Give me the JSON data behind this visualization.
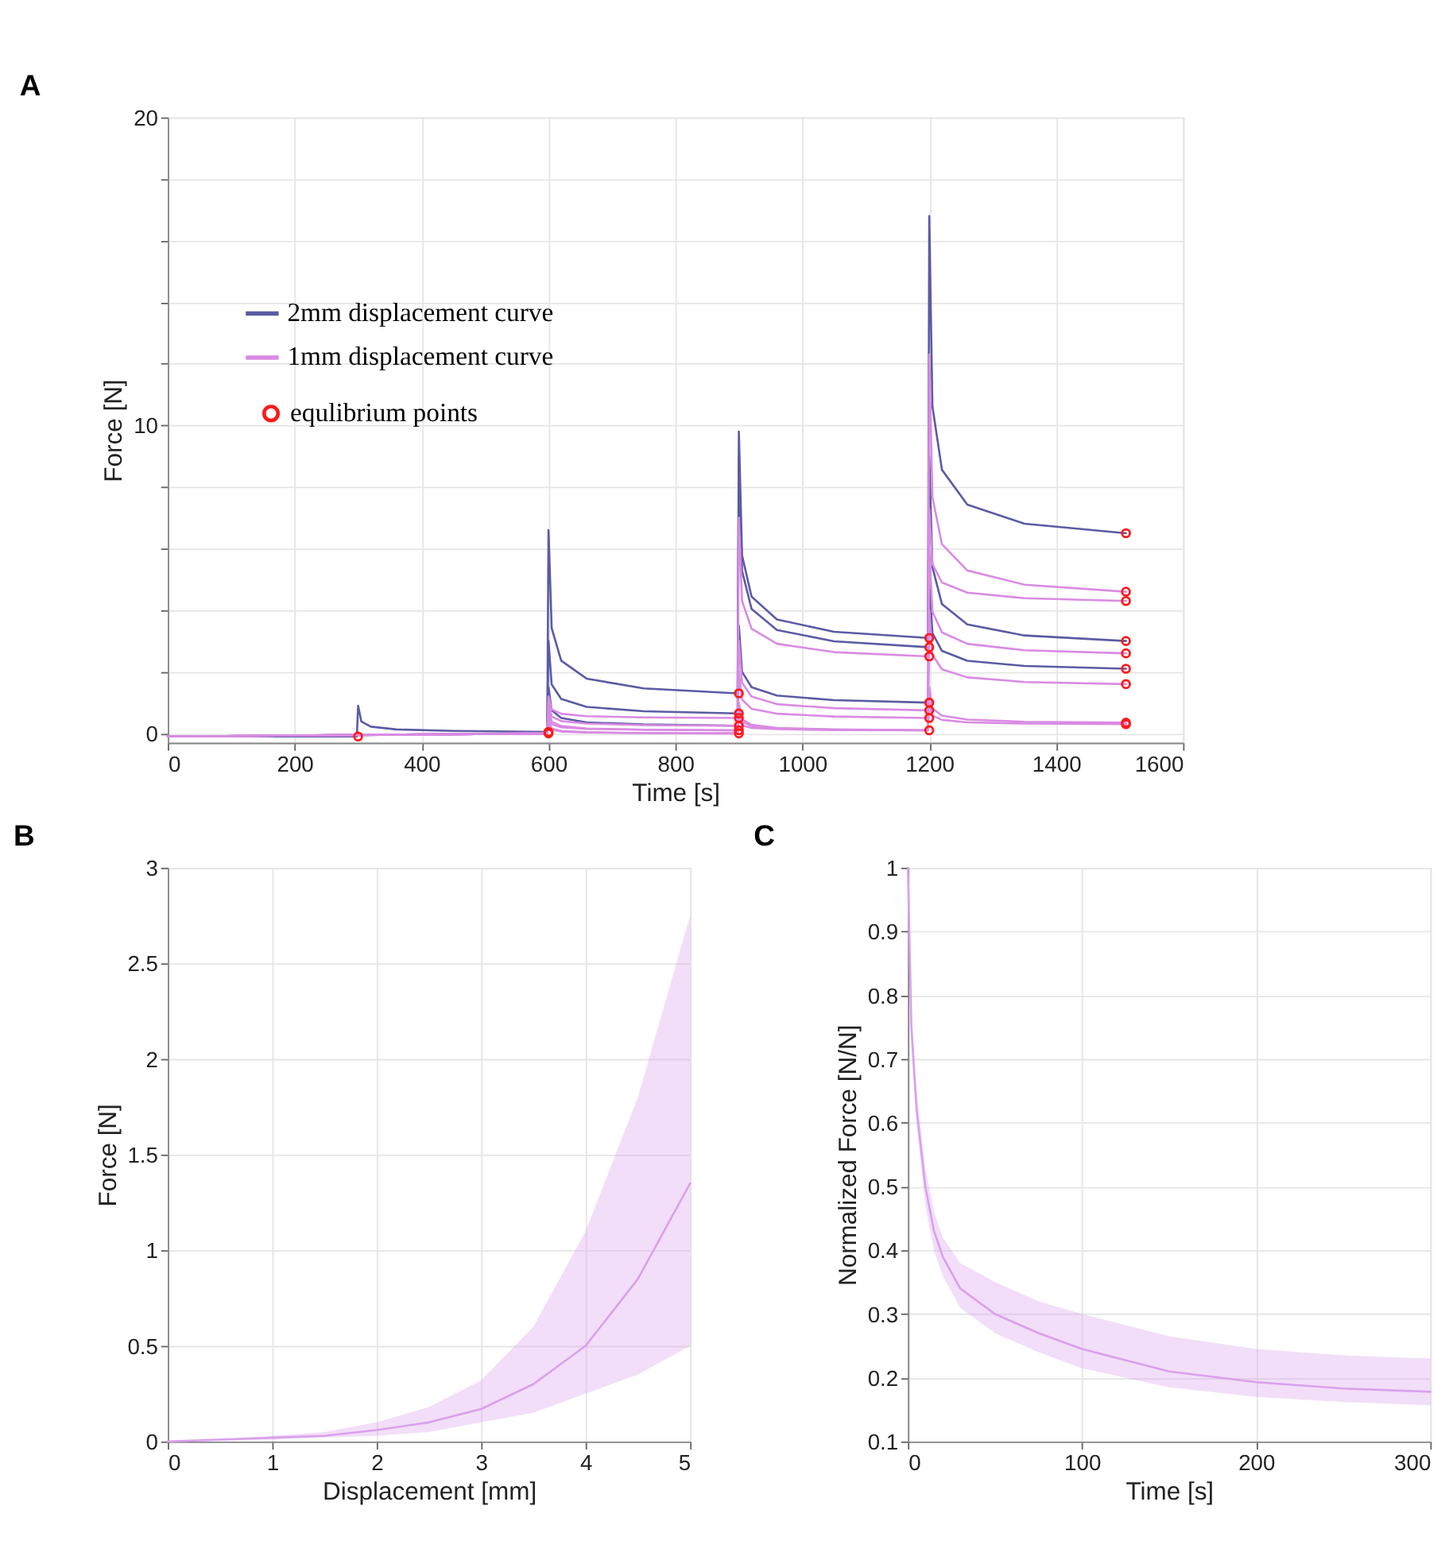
{
  "chart_data": [
    {
      "type": "line",
      "title": "A",
      "xlabel": "Time [s]",
      "ylabel": "Force [N]",
      "xlim": [
        0,
        1600
      ],
      "ylim": [
        -0.3,
        20
      ],
      "xticks": [
        0,
        200,
        400,
        600,
        800,
        1000,
        1200,
        1400,
        1600
      ],
      "yticks": [
        0,
        {
          "value": 2,
          "label": null
        },
        {
          "value": 4,
          "label": null
        },
        {
          "value": 6,
          "label": null
        },
        {
          "value": 8,
          "label": null
        },
        10,
        {
          "value": 12,
          "label": null
        },
        {
          "value": 14,
          "label": null
        },
        {
          "value": 16,
          "label": null
        },
        {
          "value": 18,
          "label": null
        },
        20
      ],
      "grid": true,
      "legend": "top left",
      "series": [
        {
          "name": "2mm displacement curve",
          "color": "#5b5ba3",
          "x": [
            0,
            298,
            300,
            305,
            320,
            360,
            450,
            598,
            600,
            605,
            620,
            660,
            750,
            898,
            900,
            905,
            920,
            960,
            1050,
            1198,
            1200,
            1205,
            1220,
            1260,
            1350,
            1510
          ],
          "values": [
            -0.1,
            -0.1,
            0.9,
            0.39,
            0.22,
            0.13,
            0.08,
            0.05,
            6.6,
            3.42,
            2.36,
            1.78,
            1.46,
            1.3,
            9.8,
            5.78,
            4.44,
            3.7,
            3.3,
            3.1,
            16.8,
            10.62,
            8.56,
            7.43,
            6.81,
            6.5
          ]
        },
        {
          "color": "#5b5ba3",
          "x": [
            0,
            598,
            600,
            605,
            620,
            660,
            750,
            898,
            900,
            905,
            920,
            960,
            1050,
            1198,
            1200,
            1205,
            1220,
            1260,
            1350,
            1510
          ],
          "values": [
            -0.1,
            0.0,
            3.0,
            1.59,
            1.12,
            0.86,
            0.72,
            0.65,
            9.0,
            5.28,
            4.04,
            3.36,
            2.99,
            2.8,
            9.0,
            5.4,
            4.2,
            3.54,
            3.18,
            3.0
          ]
        },
        {
          "color": "#5b5ba3",
          "x": [
            0,
            598,
            600,
            605,
            620,
            660,
            750,
            898,
            900,
            905,
            920,
            960,
            1050,
            1198,
            1200,
            1205,
            1220,
            1260,
            1350,
            1510
          ],
          "values": [
            -0.1,
            0.0,
            1.5,
            0.75,
            0.5,
            0.36,
            0.29,
            0.25,
            3.5,
            2.0,
            1.5,
            1.23,
            1.08,
            1.0,
            5.0,
            3.26,
            2.68,
            2.36,
            2.19,
            2.1
          ]
        },
        {
          "name": "1mm displacement curve",
          "color": "#d98be3",
          "x": [
            0,
            598,
            600,
            605,
            620,
            660,
            750,
            898,
            900,
            905,
            920,
            960,
            1050,
            1198,
            1200,
            1205,
            1220,
            1260,
            1350,
            1510
          ],
          "values": [
            -0.1,
            0.0,
            1.2,
            0.78,
            0.64,
            0.56,
            0.52,
            0.5,
            7.0,
            4.3,
            3.4,
            2.91,
            2.64,
            2.5,
            12.3,
            7.68,
            6.14,
            5.29,
            4.83,
            4.6
          ]
        },
        {
          "color": "#d98be3",
          "x": [
            0,
            598,
            600,
            605,
            620,
            660,
            750,
            898,
            900,
            905,
            920,
            960,
            1050,
            1198,
            1200,
            1205,
            1220,
            1260,
            1350,
            1510
          ],
          "values": [
            -0.1,
            0.0,
            1.0,
            0.55,
            0.4,
            0.32,
            0.27,
            0.25,
            3.0,
            1.65,
            1.2,
            0.95,
            0.82,
            0.75,
            7.3,
            5.5,
            4.9,
            4.57,
            4.39,
            4.3
          ]
        },
        {
          "color": "#d98be3",
          "x": [
            0,
            598,
            600,
            605,
            620,
            660,
            750,
            898,
            900,
            905,
            920,
            960,
            1050,
            1198,
            1200,
            1205,
            1220,
            1260,
            1350,
            1510
          ],
          "values": [
            -0.1,
            0.0,
            0.8,
            0.38,
            0.24,
            0.16,
            0.12,
            0.1,
            2.0,
            1.1,
            0.8,
            0.64,
            0.55,
            0.5,
            6.0,
            3.96,
            3.28,
            2.91,
            2.7,
            2.6
          ]
        },
        {
          "color": "#d98be3",
          "x": [
            0,
            598,
            600,
            605,
            620,
            660,
            750,
            898,
            900,
            905,
            920,
            960,
            1050,
            1198,
            1200,
            1205,
            1220,
            1260,
            1350,
            1510
          ],
          "values": [
            -0.1,
            0.0,
            0.6,
            0.3,
            0.2,
            0.15,
            0.12,
            0.1,
            1.0,
            0.46,
            0.28,
            0.18,
            0.13,
            0.1,
            4.0,
            2.56,
            2.08,
            1.82,
            1.67,
            1.6
          ]
        },
        {
          "color": "#d98be3",
          "x": [
            0,
            598,
            600,
            605,
            620,
            660,
            750,
            898,
            900,
            905,
            920,
            960,
            1050,
            1198,
            1200,
            1205,
            1220,
            1260,
            1350,
            1510
          ],
          "values": [
            -0.1,
            0.0,
            0.4,
            0.16,
            0.08,
            0.04,
            0.01,
            0.0,
            0.8,
            0.38,
            0.24,
            0.16,
            0.12,
            0.1,
            1.5,
            0.81,
            0.58,
            0.45,
            0.38,
            0.35
          ]
        },
        {
          "color": "#d98be3",
          "x": [
            0,
            598,
            600,
            605,
            620,
            660,
            750,
            898,
            900,
            905,
            920,
            960,
            1050,
            1198,
            1200,
            1205,
            1220,
            1260,
            1350,
            1510
          ],
          "values": [
            -0.1,
            0.0,
            0.3,
            0.12,
            0.06,
            0.03,
            0.01,
            0.0,
            0.5,
            0.26,
            0.18,
            0.14,
            0.11,
            0.1,
            1.0,
            0.58,
            0.44,
            0.36,
            0.32,
            0.3
          ]
        },
        {
          "name": "equlibrium points",
          "type": "scatter",
          "marker": "circle",
          "color": "#ff1a1a",
          "x": [
            300,
            600,
            600,
            900,
            900,
            900,
            900,
            900,
            900,
            1200,
            1200,
            1200,
            1200,
            1200,
            1200,
            1200,
            1510,
            1510,
            1510,
            1510,
            1510,
            1510,
            1510,
            1510,
            1510
          ],
          "values": [
            -0.1,
            0.0,
            0.05,
            1.3,
            0.65,
            0.5,
            0.25,
            0.1,
            0.0,
            3.1,
            2.8,
            2.5,
            1.0,
            0.75,
            0.5,
            0.1,
            6.5,
            4.6,
            4.3,
            3.0,
            2.6,
            2.1,
            1.6,
            0.35,
            0.3
          ]
        }
      ]
    },
    {
      "type": "line",
      "title": "B",
      "xlabel": "Displacement [mm]",
      "ylabel": "Force [N]",
      "xlim": [
        0,
        5
      ],
      "ylim": [
        0,
        3
      ],
      "xticks": [
        0,
        1,
        2,
        3,
        4,
        5
      ],
      "yticks": [
        0,
        0.5,
        1,
        1.5,
        2,
        2.5,
        3
      ],
      "grid": true,
      "series": [
        {
          "color": "#d9a0ec",
          "x": [
            0,
            0.5,
            1,
            1.5,
            2,
            2.5,
            3,
            3.5,
            4,
            4.5,
            5
          ],
          "values": [
            0,
            0.01,
            0.02,
            0.03,
            0.06,
            0.1,
            0.17,
            0.3,
            0.5,
            0.85,
            1.35
          ],
          "lower": [
            0,
            0.003,
            0.01,
            0.02,
            0.03,
            0.05,
            0.1,
            0.15,
            0.25,
            0.35,
            0.5
          ],
          "upper": [
            0,
            0.008,
            0.03,
            0.05,
            0.1,
            0.18,
            0.32,
            0.6,
            1.1,
            1.8,
            2.75
          ]
        }
      ]
    },
    {
      "type": "line",
      "title": "C",
      "xlabel": "Time [s]",
      "ylabel": "Normalized Force [N/N]",
      "xlim": [
        0,
        300
      ],
      "ylim": [
        0.1,
        1
      ],
      "xticks": [
        0,
        100,
        200,
        300
      ],
      "yticks": [
        0.1,
        0.2,
        0.3,
        0.4,
        0.5,
        0.6,
        0.7,
        0.8,
        0.9,
        1
      ],
      "grid": true,
      "series": [
        {
          "color": "#d9a0ec",
          "x": [
            0,
            2,
            5,
            10,
            15,
            20,
            30,
            50,
            75,
            100,
            150,
            200,
            250,
            300
          ],
          "values": [
            1.0,
            0.75,
            0.62,
            0.5,
            0.43,
            0.39,
            0.34,
            0.3,
            0.27,
            0.245,
            0.21,
            0.193,
            0.183,
            0.178
          ],
          "lower": [
            1.0,
            0.72,
            0.6,
            0.47,
            0.4,
            0.36,
            0.31,
            0.27,
            0.24,
            0.215,
            0.185,
            0.17,
            0.162,
            0.157
          ],
          "upper": [
            1.0,
            0.78,
            0.65,
            0.53,
            0.46,
            0.42,
            0.38,
            0.35,
            0.32,
            0.3,
            0.265,
            0.245,
            0.235,
            0.23
          ]
        }
      ]
    }
  ]
}
